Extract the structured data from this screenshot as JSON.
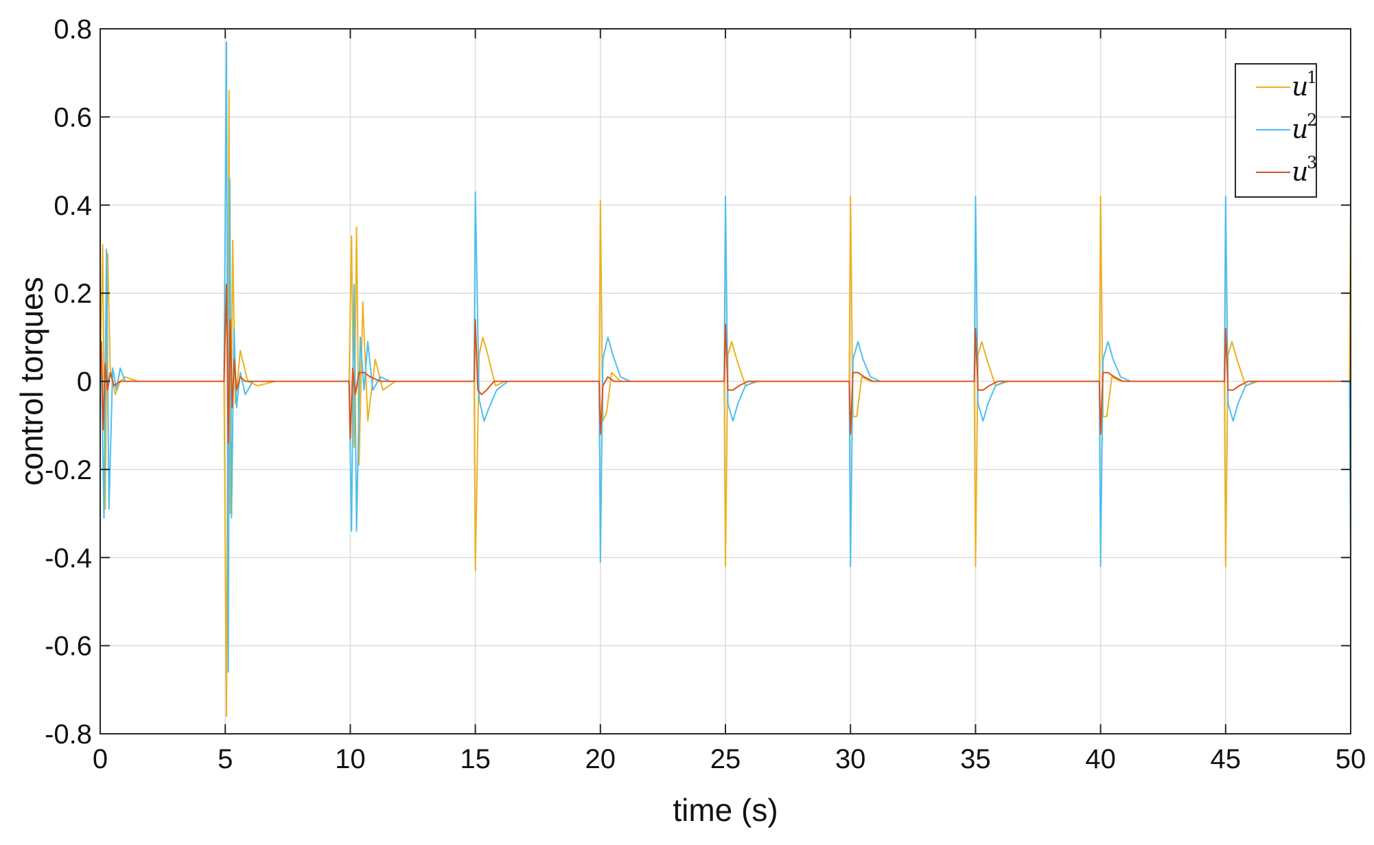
{
  "chart_data": {
    "type": "line",
    "title": "",
    "xlabel": "time (s)",
    "ylabel": "control torques",
    "xlim": [
      0,
      50
    ],
    "ylim": [
      -0.8,
      0.8
    ],
    "xticks": [
      0,
      5,
      10,
      15,
      20,
      25,
      30,
      35,
      40,
      45,
      50
    ],
    "yticks": [
      -0.8,
      -0.6,
      -0.4,
      -0.2,
      0,
      0.2,
      0.4,
      0.6,
      0.8
    ],
    "xtick_labels": [
      "0",
      "5",
      "10",
      "15",
      "20",
      "25",
      "30",
      "35",
      "40",
      "45",
      "50"
    ],
    "ytick_labels": [
      "-0.8",
      "-0.6",
      "-0.4",
      "-0.2",
      "0",
      "0.2",
      "0.4",
      "0.6",
      "0.8"
    ],
    "grid": true,
    "legend_position": "top-right",
    "series": [
      {
        "name": "u",
        "name_sup": "1",
        "color": "#EDB120",
        "x": [
          0,
          0.1,
          0.2,
          0.3,
          0.4,
          0.6,
          0.8,
          1.0,
          1.5,
          2,
          4.95,
          5.05,
          5.15,
          5.2,
          5.3,
          5.4,
          5.6,
          5.9,
          6.3,
          7,
          9.95,
          10.05,
          10.15,
          10.25,
          10.35,
          10.5,
          10.7,
          11.0,
          11.3,
          11.8,
          12.5,
          14.95,
          15.0,
          15.15,
          15.3,
          15.5,
          15.8,
          16.2,
          16.8,
          19.95,
          20.0,
          20.1,
          20.25,
          20.45,
          20.8,
          21.3,
          21.9,
          24.95,
          25.0,
          25.1,
          25.25,
          25.45,
          25.8,
          26.3,
          26.9,
          29.95,
          30.0,
          30.1,
          30.25,
          30.45,
          30.8,
          31.3,
          31.9,
          34.95,
          35.0,
          35.1,
          35.25,
          35.45,
          35.8,
          36.3,
          36.9,
          39.95,
          40.0,
          40.1,
          40.25,
          40.45,
          40.8,
          41.3,
          41.9,
          44.95,
          45.0,
          45.1,
          45.25,
          45.45,
          45.8,
          46.3,
          46.9,
          49.95,
          50.0
        ],
        "y": [
          0,
          0.31,
          -0.29,
          0.29,
          0.03,
          -0.03,
          0.0,
          0.01,
          0.0,
          0,
          0,
          -0.76,
          0.66,
          -0.3,
          0.32,
          -0.05,
          0.07,
          0.0,
          -0.01,
          0,
          0,
          0.33,
          -0.15,
          0.35,
          -0.19,
          0.18,
          -0.09,
          0.05,
          -0.02,
          0.0,
          0,
          0,
          -0.43,
          0.06,
          0.1,
          0.06,
          -0.01,
          0.0,
          0,
          0,
          0.41,
          -0.09,
          -0.07,
          0.02,
          0.0,
          0.0,
          0,
          0,
          -0.42,
          0.06,
          0.09,
          0.05,
          -0.01,
          0.0,
          0,
          0,
          0.42,
          -0.08,
          -0.08,
          0.01,
          0.0,
          0.0,
          0,
          0,
          -0.42,
          0.06,
          0.09,
          0.05,
          -0.01,
          0.0,
          0,
          0,
          0.42,
          -0.08,
          -0.08,
          0.01,
          0.0,
          0.0,
          0,
          0,
          -0.42,
          0.06,
          0.09,
          0.05,
          -0.01,
          0.0,
          0,
          0,
          0.42
        ]
      },
      {
        "name": "u",
        "name_sup": "2",
        "color": "#4DBEEE",
        "x": [
          0,
          0.05,
          0.15,
          0.25,
          0.35,
          0.5,
          0.65,
          0.8,
          1.0,
          1.4,
          2,
          4.95,
          5.05,
          5.12,
          5.18,
          5.25,
          5.35,
          5.45,
          5.6,
          5.8,
          6.1,
          6.5,
          7,
          9.95,
          10.05,
          10.15,
          10.25,
          10.4,
          10.55,
          10.7,
          10.9,
          11.2,
          11.6,
          12.2,
          14.95,
          15.0,
          15.15,
          15.35,
          15.55,
          15.85,
          16.3,
          16.9,
          19.95,
          20.0,
          20.1,
          20.3,
          20.5,
          20.8,
          21.2,
          21.8,
          24.95,
          25.0,
          25.1,
          25.3,
          25.5,
          25.8,
          26.2,
          26.8,
          29.95,
          30.0,
          30.1,
          30.3,
          30.5,
          30.8,
          31.2,
          31.8,
          34.95,
          35.0,
          35.1,
          35.3,
          35.5,
          35.8,
          36.2,
          36.8,
          39.95,
          40.0,
          40.1,
          40.3,
          40.5,
          40.8,
          41.2,
          41.8,
          44.95,
          45.0,
          45.1,
          45.3,
          45.5,
          45.8,
          46.2,
          46.8,
          49.95,
          50.0
        ],
        "y": [
          0,
          0.02,
          -0.31,
          0.3,
          -0.29,
          0.03,
          -0.02,
          0.03,
          0.0,
          0.0,
          0,
          0,
          0.77,
          -0.66,
          0.46,
          -0.31,
          0.12,
          -0.06,
          0.02,
          -0.03,
          0.0,
          0.0,
          0,
          0,
          -0.34,
          0.22,
          -0.34,
          0.1,
          -0.02,
          0.09,
          -0.02,
          0.01,
          0.0,
          0,
          0,
          0.43,
          -0.04,
          -0.09,
          -0.06,
          -0.02,
          0.0,
          0,
          0,
          -0.41,
          0.05,
          0.1,
          0.06,
          0.01,
          0.0,
          0,
          0,
          0.42,
          -0.05,
          -0.09,
          -0.05,
          -0.01,
          0.0,
          0,
          0,
          -0.42,
          0.05,
          0.09,
          0.05,
          0.01,
          0.0,
          0,
          0,
          0.42,
          -0.05,
          -0.09,
          -0.05,
          -0.01,
          0.0,
          0,
          0,
          -0.42,
          0.05,
          0.09,
          0.05,
          0.01,
          0.0,
          0,
          0,
          0.42,
          -0.05,
          -0.09,
          -0.05,
          -0.01,
          0.0,
          0,
          0,
          -0.42
        ]
      },
      {
        "name": "u",
        "name_sup": "3",
        "color": "#D95319",
        "x": [
          0,
          0.05,
          0.12,
          0.2,
          0.3,
          0.4,
          0.55,
          0.8,
          1.2,
          2,
          4.95,
          5.05,
          5.12,
          5.2,
          5.28,
          5.36,
          5.45,
          5.6,
          5.8,
          6.2,
          7,
          9.95,
          10.0,
          10.1,
          10.2,
          10.35,
          10.55,
          10.8,
          11.2,
          12,
          14.95,
          15.0,
          15.1,
          15.25,
          15.45,
          15.75,
          16.2,
          17,
          19.95,
          20.0,
          20.1,
          20.3,
          20.55,
          20.9,
          21.5,
          24.95,
          25.0,
          25.1,
          25.3,
          25.55,
          25.9,
          26.5,
          29.95,
          30.0,
          30.1,
          30.3,
          30.55,
          30.9,
          31.5,
          34.95,
          35.0,
          35.1,
          35.3,
          35.55,
          35.9,
          36.5,
          39.95,
          40.0,
          40.1,
          40.3,
          40.55,
          40.9,
          41.5,
          44.95,
          45.0,
          45.1,
          45.3,
          45.55,
          45.9,
          46.5,
          49.95,
          50.0
        ],
        "y": [
          0,
          0.09,
          -0.11,
          0.04,
          -0.02,
          0.02,
          -0.01,
          0.0,
          0.0,
          0,
          0,
          0.22,
          -0.14,
          0.14,
          -0.06,
          0.05,
          -0.02,
          0.01,
          0.0,
          0.0,
          0,
          0,
          -0.13,
          0.03,
          -0.03,
          0.02,
          0.02,
          0.01,
          0.0,
          0,
          0,
          0.14,
          -0.02,
          -0.03,
          -0.02,
          0.0,
          0.0,
          0,
          0,
          -0.12,
          -0.01,
          0.01,
          0.0,
          0.0,
          0,
          0,
          0.13,
          -0.02,
          -0.02,
          -0.01,
          0.0,
          0,
          0,
          -0.12,
          0.02,
          0.02,
          0.01,
          0.0,
          0,
          0,
          0.12,
          -0.02,
          -0.02,
          -0.01,
          0.0,
          0,
          0,
          -0.12,
          0.02,
          0.02,
          0.01,
          0.0,
          0,
          0,
          0.12,
          -0.02,
          -0.02,
          -0.01,
          0.0,
          0,
          0,
          0.0
        ]
      }
    ]
  }
}
